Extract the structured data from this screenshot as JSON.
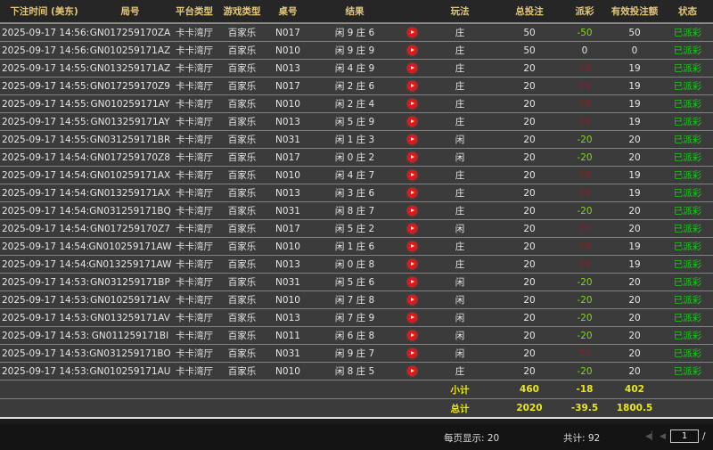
{
  "headers": [
    "下注时间 (美东)",
    "局号",
    "平台类型",
    "游戏类型",
    "桌号",
    "结果",
    "",
    "玩法",
    "总投注",
    "派彩",
    "有效投注额",
    "状态"
  ],
  "rows": [
    {
      "time": "2025-09-17 14:56:13",
      "id": "GN017259170ZA",
      "platform": "卡卡湾厅",
      "game": "百家乐",
      "table": "N017",
      "result": "闲 9 庄 6",
      "play": "庄",
      "bet": "50",
      "payout": "-50",
      "payout_type": "neg",
      "valid": "50",
      "status": "已派彩"
    },
    {
      "time": "2025-09-17 14:56:01",
      "id": "GN010259171AZ",
      "platform": "卡卡湾厅",
      "game": "百家乐",
      "table": "N010",
      "result": "闲 9 庄 9",
      "play": "庄",
      "bet": "50",
      "payout": "0",
      "payout_type": "zero",
      "valid": "0",
      "status": "已派彩"
    },
    {
      "time": "2025-09-17 14:55:39",
      "id": "GN013259171AZ",
      "platform": "卡卡湾厅",
      "game": "百家乐",
      "table": "N013",
      "result": "闲 4 庄 9",
      "play": "庄",
      "bet": "20",
      "payout": "19",
      "payout_type": "pos",
      "valid": "19",
      "status": "已派彩"
    },
    {
      "time": "2025-09-17 14:55:26",
      "id": "GN017259170Z9",
      "platform": "卡卡湾厅",
      "game": "百家乐",
      "table": "N017",
      "result": "闲 2 庄 6",
      "play": "庄",
      "bet": "20",
      "payout": "19",
      "payout_type": "pos",
      "valid": "19",
      "status": "已派彩"
    },
    {
      "time": "2025-09-17 14:55:21",
      "id": "GN010259171AY",
      "platform": "卡卡湾厅",
      "game": "百家乐",
      "table": "N010",
      "result": "闲 2 庄 4",
      "play": "庄",
      "bet": "20",
      "payout": "19",
      "payout_type": "pos",
      "valid": "19",
      "status": "已派彩"
    },
    {
      "time": "2025-09-17 14:55:07",
      "id": "GN013259171AY",
      "platform": "卡卡湾厅",
      "game": "百家乐",
      "table": "N013",
      "result": "闲 5 庄 9",
      "play": "庄",
      "bet": "20",
      "payout": "19",
      "payout_type": "pos",
      "valid": "19",
      "status": "已派彩"
    },
    {
      "time": "2025-09-17 14:55:00",
      "id": "GN031259171BR",
      "platform": "卡卡湾厅",
      "game": "百家乐",
      "table": "N031",
      "result": "闲 1 庄 3",
      "play": "闲",
      "bet": "20",
      "payout": "-20",
      "payout_type": "neg",
      "valid": "20",
      "status": "已派彩"
    },
    {
      "time": "2025-09-17 14:54:48",
      "id": "GN017259170Z8",
      "platform": "卡卡湾厅",
      "game": "百家乐",
      "table": "N017",
      "result": "闲 0 庄 2",
      "play": "闲",
      "bet": "20",
      "payout": "-20",
      "payout_type": "neg",
      "valid": "20",
      "status": "已派彩"
    },
    {
      "time": "2025-09-17 14:54:46",
      "id": "GN010259171AX",
      "platform": "卡卡湾厅",
      "game": "百家乐",
      "table": "N010",
      "result": "闲 4 庄 7",
      "play": "庄",
      "bet": "20",
      "payout": "19",
      "payout_type": "pos",
      "valid": "19",
      "status": "已派彩"
    },
    {
      "time": "2025-09-17 14:54:38",
      "id": "GN013259171AX",
      "platform": "卡卡湾厅",
      "game": "百家乐",
      "table": "N013",
      "result": "闲 3 庄 6",
      "play": "庄",
      "bet": "20",
      "payout": "19",
      "payout_type": "pos",
      "valid": "19",
      "status": "已派彩"
    },
    {
      "time": "2025-09-17 14:54:27",
      "id": "GN031259171BQ",
      "platform": "卡卡湾厅",
      "game": "百家乐",
      "table": "N031",
      "result": "闲 8 庄 7",
      "play": "庄",
      "bet": "20",
      "payout": "-20",
      "payout_type": "neg",
      "valid": "20",
      "status": "已派彩"
    },
    {
      "time": "2025-09-17 14:54:21",
      "id": "GN017259170Z7",
      "platform": "卡卡湾厅",
      "game": "百家乐",
      "table": "N017",
      "result": "闲 5 庄 2",
      "play": "闲",
      "bet": "20",
      "payout": "20",
      "payout_type": "pos",
      "valid": "20",
      "status": "已派彩"
    },
    {
      "time": "2025-09-17 14:54:19",
      "id": "GN010259171AW",
      "platform": "卡卡湾厅",
      "game": "百家乐",
      "table": "N010",
      "result": "闲 1 庄 6",
      "play": "庄",
      "bet": "20",
      "payout": "19",
      "payout_type": "pos",
      "valid": "19",
      "status": "已派彩"
    },
    {
      "time": "2025-09-17 14:54:09",
      "id": "GN013259171AW",
      "platform": "卡卡湾厅",
      "game": "百家乐",
      "table": "N013",
      "result": "闲 0 庄 8",
      "play": "庄",
      "bet": "20",
      "payout": "19",
      "payout_type": "pos",
      "valid": "19",
      "status": "已派彩"
    },
    {
      "time": "2025-09-17 14:53:59",
      "id": "GN031259171BP",
      "platform": "卡卡湾厅",
      "game": "百家乐",
      "table": "N031",
      "result": "闲 5 庄 6",
      "play": "闲",
      "bet": "20",
      "payout": "-20",
      "payout_type": "neg",
      "valid": "20",
      "status": "已派彩"
    },
    {
      "time": "2025-09-17 14:53:48",
      "id": "GN010259171AV",
      "platform": "卡卡湾厅",
      "game": "百家乐",
      "table": "N010",
      "result": "闲 7 庄 8",
      "play": "闲",
      "bet": "20",
      "payout": "-20",
      "payout_type": "neg",
      "valid": "20",
      "status": "已派彩"
    },
    {
      "time": "2025-09-17 14:53:42",
      "id": "GN013259171AV",
      "platform": "卡卡湾厅",
      "game": "百家乐",
      "table": "N013",
      "result": "闲 7 庄 9",
      "play": "闲",
      "bet": "20",
      "payout": "-20",
      "payout_type": "neg",
      "valid": "20",
      "status": "已派彩"
    },
    {
      "time": "2025-09-17 14:53:33",
      "id": "GN011259171BI",
      "platform": "卡卡湾厅",
      "game": "百家乐",
      "table": "N011",
      "result": "闲 6 庄 8",
      "play": "闲",
      "bet": "20",
      "payout": "-20",
      "payout_type": "neg",
      "valid": "20",
      "status": "已派彩"
    },
    {
      "time": "2025-09-17 14:53:29",
      "id": "GN031259171BO",
      "platform": "卡卡湾厅",
      "game": "百家乐",
      "table": "N031",
      "result": "闲 9 庄 7",
      "play": "闲",
      "bet": "20",
      "payout": "20",
      "payout_type": "pos",
      "valid": "20",
      "status": "已派彩"
    },
    {
      "time": "2025-09-17 14:53:21",
      "id": "GN010259171AU",
      "platform": "卡卡湾厅",
      "game": "百家乐",
      "table": "N010",
      "result": "闲 8 庄 5",
      "play": "庄",
      "bet": "20",
      "payout": "-20",
      "payout_type": "neg",
      "valid": "20",
      "status": "已派彩"
    }
  ],
  "subtotal": {
    "label": "小计",
    "bet": "460",
    "payout": "-18",
    "valid": "402"
  },
  "total": {
    "label": "总计",
    "bet": "2020",
    "payout": "-39.5",
    "valid": "1800.5"
  },
  "footer": {
    "page_size": "每页显示: 20",
    "count": "共计: 92",
    "page": "1",
    "page_sep": "/"
  },
  "colors": {
    "header_text": "#e2c77a",
    "win": "#8b1e2a",
    "loss": "#86d41e",
    "status": "#1ec81e",
    "sum": "#e8e817"
  },
  "icons": {
    "replay": "play-circle-icon",
    "first": "first-page-icon",
    "prev": "prev-page-icon"
  }
}
